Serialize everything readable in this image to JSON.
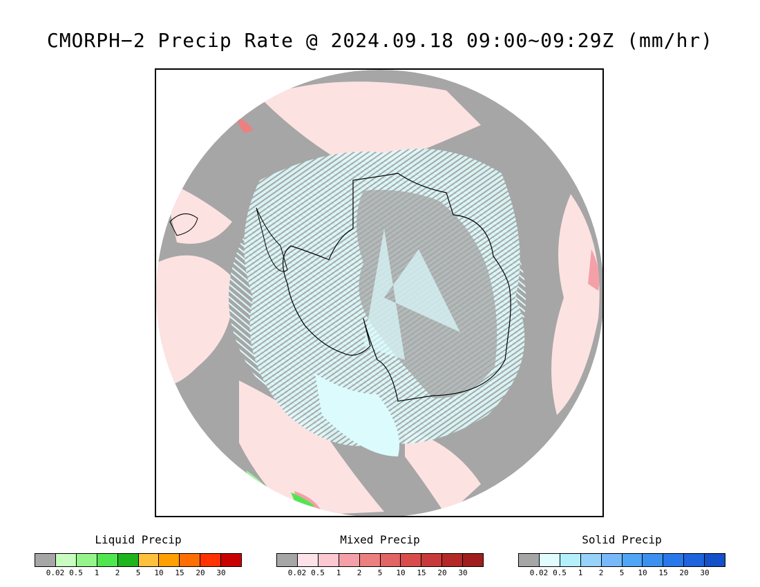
{
  "title": "CMORPH−2 Precip Rate @ 2024.09.18 09:00∼09:29Z (mm/hr)",
  "map": {
    "projection": "south-polar-stereographic",
    "region": "Antarctica and Southern Ocean",
    "colors": {
      "no_precip": "#a6a6a6",
      "mixed_light": "#fde2e2",
      "solid_light": "#dcfbfd",
      "mixed_moderate": "#f39aa0",
      "liquid_light": "#9df59a",
      "coastline": "#000000"
    }
  },
  "legends": [
    {
      "title": "Liquid Precip",
      "colors": [
        "#a6a6a6",
        "#c8fcc0",
        "#96f58a",
        "#50e650",
        "#1eb41e",
        "#ffc13c",
        "#ffa000",
        "#ff6e00",
        "#ff3200",
        "#c80000"
      ],
      "ticks": [
        "0.02",
        "0.5",
        "1",
        "2",
        "5",
        "10",
        "15",
        "20",
        "30"
      ]
    },
    {
      "title": "Mixed Precip",
      "colors": [
        "#a6a6a6",
        "#fde2e8",
        "#fac8d0",
        "#f4a0a8",
        "#ec8080",
        "#e26464",
        "#d84c4c",
        "#c83a3a",
        "#b42828",
        "#a01e1e"
      ],
      "ticks": [
        "0.02",
        "0.5",
        "1",
        "2",
        "5",
        "10",
        "15",
        "20",
        "30"
      ]
    },
    {
      "title": "Solid Precip",
      "colors": [
        "#a6a6a6",
        "#e0fcfc",
        "#b4f0fc",
        "#96d2fa",
        "#78b9fa",
        "#50a5f5",
        "#3c91f0",
        "#2878ec",
        "#1e64dc",
        "#1450c8"
      ],
      "ticks": [
        "0.02",
        "0.5",
        "1",
        "2",
        "5",
        "10",
        "15",
        "20",
        "30"
      ]
    }
  ]
}
